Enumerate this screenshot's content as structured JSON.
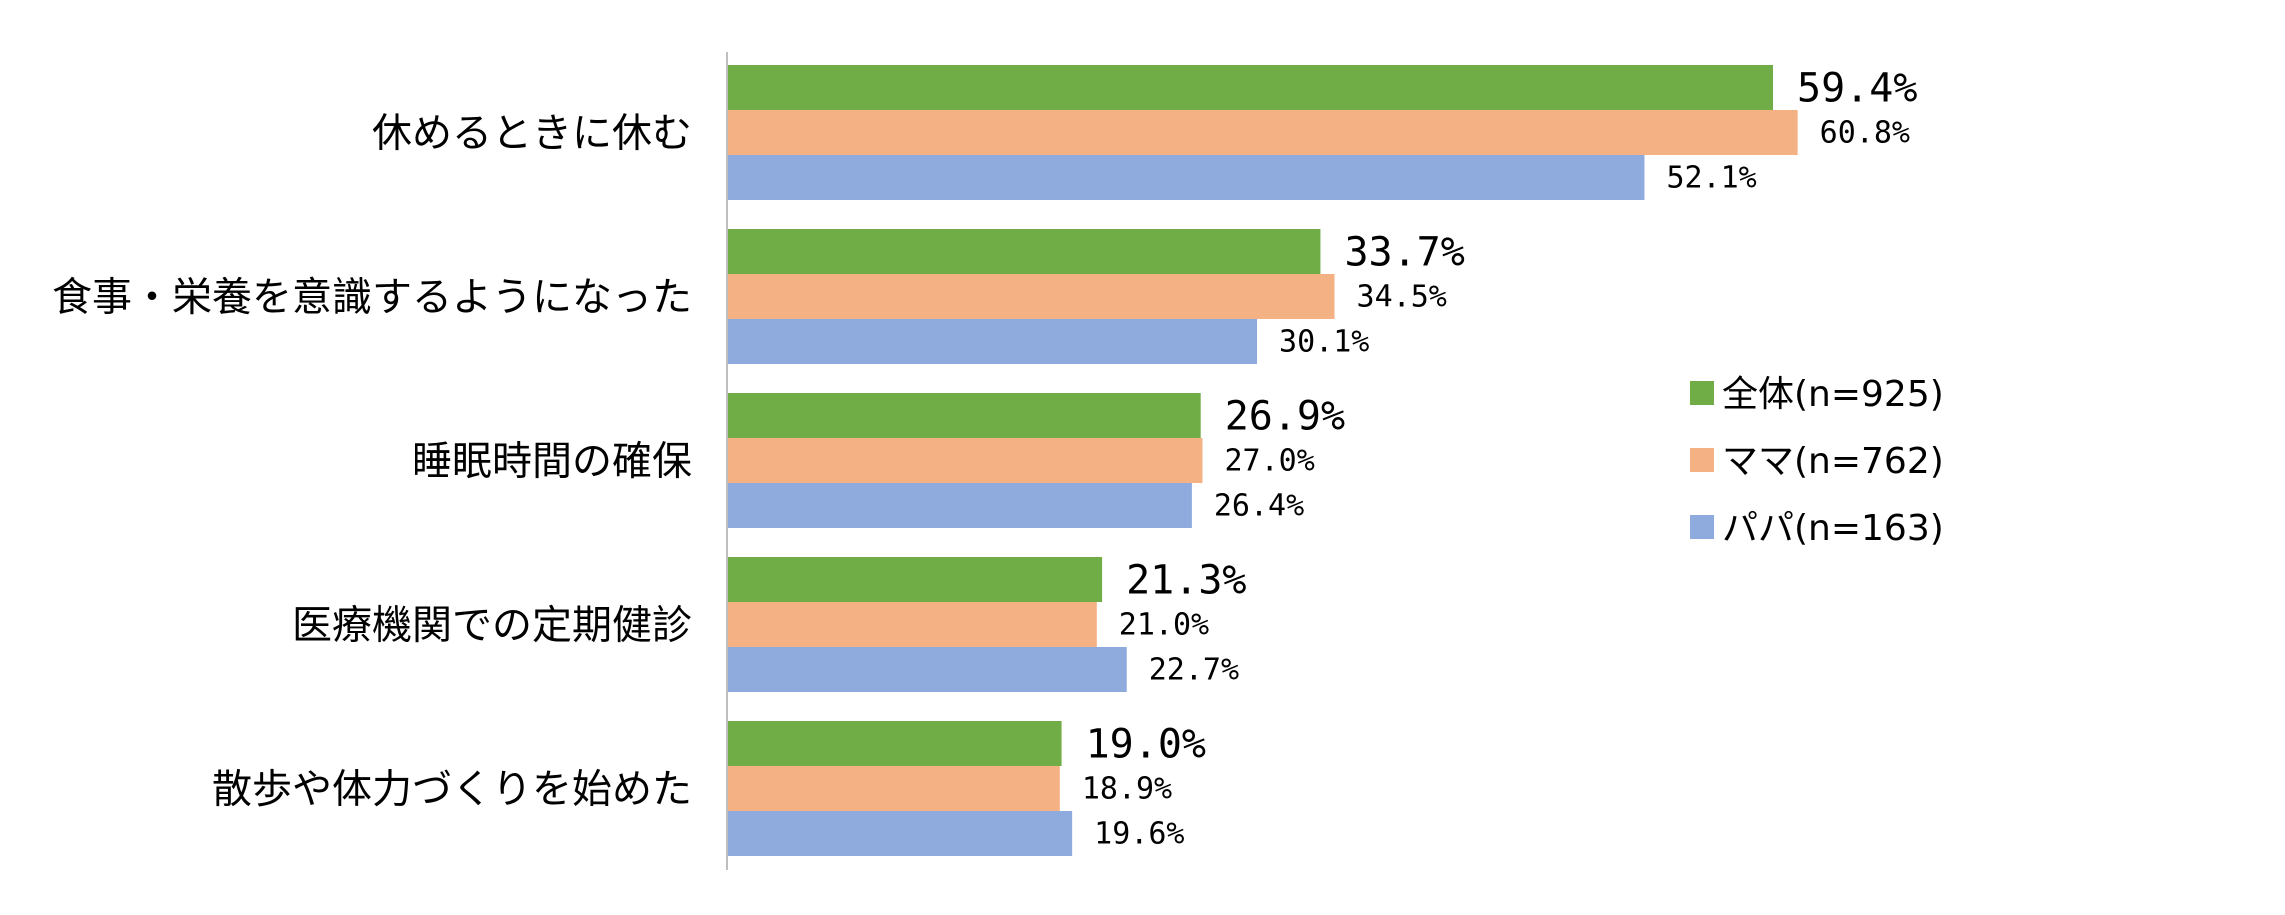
{
  "chart_data": {
    "type": "bar",
    "orientation": "horizontal",
    "categories": [
      "休めるときに休む",
      "食事・栄養を意識するようになった",
      "睡眠時間の確保",
      "医療機関での定期健診",
      "散歩や体力づくりを始めた"
    ],
    "series": [
      {
        "name": "全体(n=925)",
        "color": "#70ad47",
        "values": [
          59.4,
          33.7,
          26.9,
          21.3,
          19.0
        ],
        "labels": [
          "59.4%",
          "33.7%",
          "26.9%",
          "21.3%",
          "19.0%"
        ]
      },
      {
        "name": "ママ(n=762)",
        "color": "#f4b183",
        "values": [
          60.8,
          34.5,
          27.0,
          21.0,
          18.9
        ],
        "labels": [
          "60.8%",
          "34.5%",
          "27.0%",
          "21.0%",
          "18.9%"
        ]
      },
      {
        "name": "パパ(n=163)",
        "color": "#8faadc",
        "values": [
          52.1,
          30.1,
          26.4,
          22.7,
          19.6
        ],
        "labels": [
          "52.1%",
          "30.1%",
          "26.4%",
          "22.7%",
          "19.6%"
        ]
      }
    ],
    "value_unit": "%",
    "xlim": [
      0,
      100
    ],
    "grid": false,
    "legend_position": "right"
  }
}
